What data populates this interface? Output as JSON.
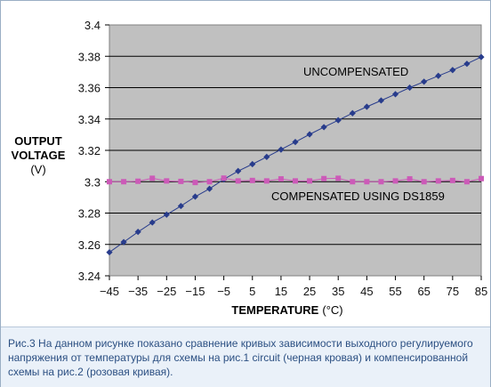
{
  "chart_data": {
    "type": "line",
    "ylabel_line1": "OUTPUT",
    "ylabel_line2": "VOLTAGE",
    "ylabel_unit": "(V)",
    "xlabel": "TEMPERATURE",
    "xlabel_unit": "(°C)",
    "xlim": [
      -45,
      85
    ],
    "ylim": [
      3.24,
      3.4
    ],
    "grid": "horizontal",
    "plot_background": "#c0c0c0",
    "x_ticks": [
      "−45",
      "−35",
      "−25",
      "−15",
      "−5",
      "5",
      "15",
      "25",
      "35",
      "45",
      "55",
      "65",
      "75",
      "85"
    ],
    "x_tick_values": [
      -45,
      -35,
      -25,
      -15,
      -5,
      5,
      15,
      25,
      35,
      45,
      55,
      65,
      75,
      85
    ],
    "y_ticks": [
      "3.24",
      "3.26",
      "3.28",
      "3.3",
      "3.32",
      "3.34",
      "3.36",
      "3.38",
      "3.4"
    ],
    "y_tick_values": [
      3.24,
      3.26,
      3.28,
      3.3,
      3.32,
      3.34,
      3.36,
      3.38,
      3.4
    ],
    "annotations": {
      "uncompensated": "UNCOMPENSATED",
      "compensated": "COMPENSATED USING DS1859"
    },
    "series": [
      {
        "color": "#283c8c",
        "marker": "diamond",
        "x": [
          -45,
          -40,
          -35,
          -30,
          -25,
          -20,
          -15,
          -10,
          -5,
          0,
          5,
          10,
          15,
          20,
          25,
          30,
          35,
          40,
          45,
          50,
          55,
          60,
          65,
          70,
          75,
          80,
          85
        ],
        "y": [
          3.255,
          3.2615,
          3.268,
          3.274,
          3.279,
          3.2845,
          3.2905,
          3.2955,
          3.3015,
          3.3068,
          3.3112,
          3.3158,
          3.3205,
          3.3253,
          3.3302,
          3.3348,
          3.3392,
          3.3437,
          3.3478,
          3.3518,
          3.3558,
          3.36,
          3.3638,
          3.3675,
          3.3712,
          3.3752,
          3.3795
        ]
      },
      {
        "color": "#cc5ab8",
        "marker": "square",
        "x": [
          -45,
          -40,
          -35,
          -30,
          -25,
          -20,
          -15,
          -10,
          -5,
          0,
          5,
          10,
          15,
          20,
          25,
          30,
          35,
          40,
          45,
          50,
          55,
          60,
          65,
          70,
          75,
          80,
          85
        ],
        "y": [
          3.3,
          3.3,
          3.3003,
          3.3022,
          3.3005,
          3.3002,
          3.2995,
          3.3,
          3.3023,
          3.3005,
          3.3008,
          3.3005,
          3.3018,
          3.3005,
          3.3005,
          3.302,
          3.3022,
          3.3,
          3.3,
          3.3,
          3.3005,
          3.3018,
          3.3,
          3.3005,
          3.3008,
          3.3,
          3.302
        ]
      }
    ]
  },
  "caption": "Рис.3 На данном рисунке показано сравнение кривых зависимости выходного регулируемого напряжения от температуры для схемы на рис.1 circuit (черная кровая) и компенсированной схемы на рис.2 (розовая кривая)."
}
